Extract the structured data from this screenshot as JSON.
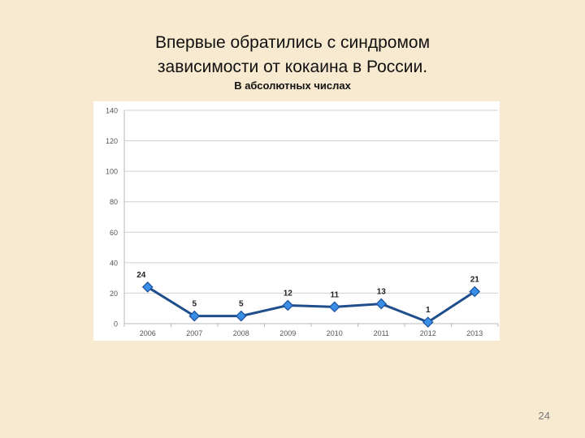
{
  "title_lines": [
    "Впервые обратились с синдромом",
    "зависимости от кокаина в России."
  ],
  "subtitle": "В абсолютных числах",
  "page_number": "24",
  "colors": {
    "background": "#f8ead0",
    "line": "#1f4e8c",
    "marker": "#3a8ee6",
    "marker_stroke": "#1a4f9c",
    "grid": "#d0d0d0"
  },
  "chart_data": {
    "type": "line",
    "categories": [
      "2006",
      "2007",
      "2008",
      "2009",
      "2010",
      "2011",
      "2012",
      "2013"
    ],
    "series": [
      {
        "values": [
          24,
          5,
          5,
          12,
          11,
          13,
          1,
          21
        ]
      }
    ],
    "data_labels": [
      "24",
      "5",
      "5",
      "12",
      "11",
      "13",
      "1",
      "21"
    ],
    "ylim": [
      0,
      140
    ],
    "yticks": [
      0,
      20,
      40,
      60,
      80,
      100,
      120,
      140
    ],
    "grid": true,
    "legend": "none",
    "xlabel": "",
    "ylabel": ""
  }
}
